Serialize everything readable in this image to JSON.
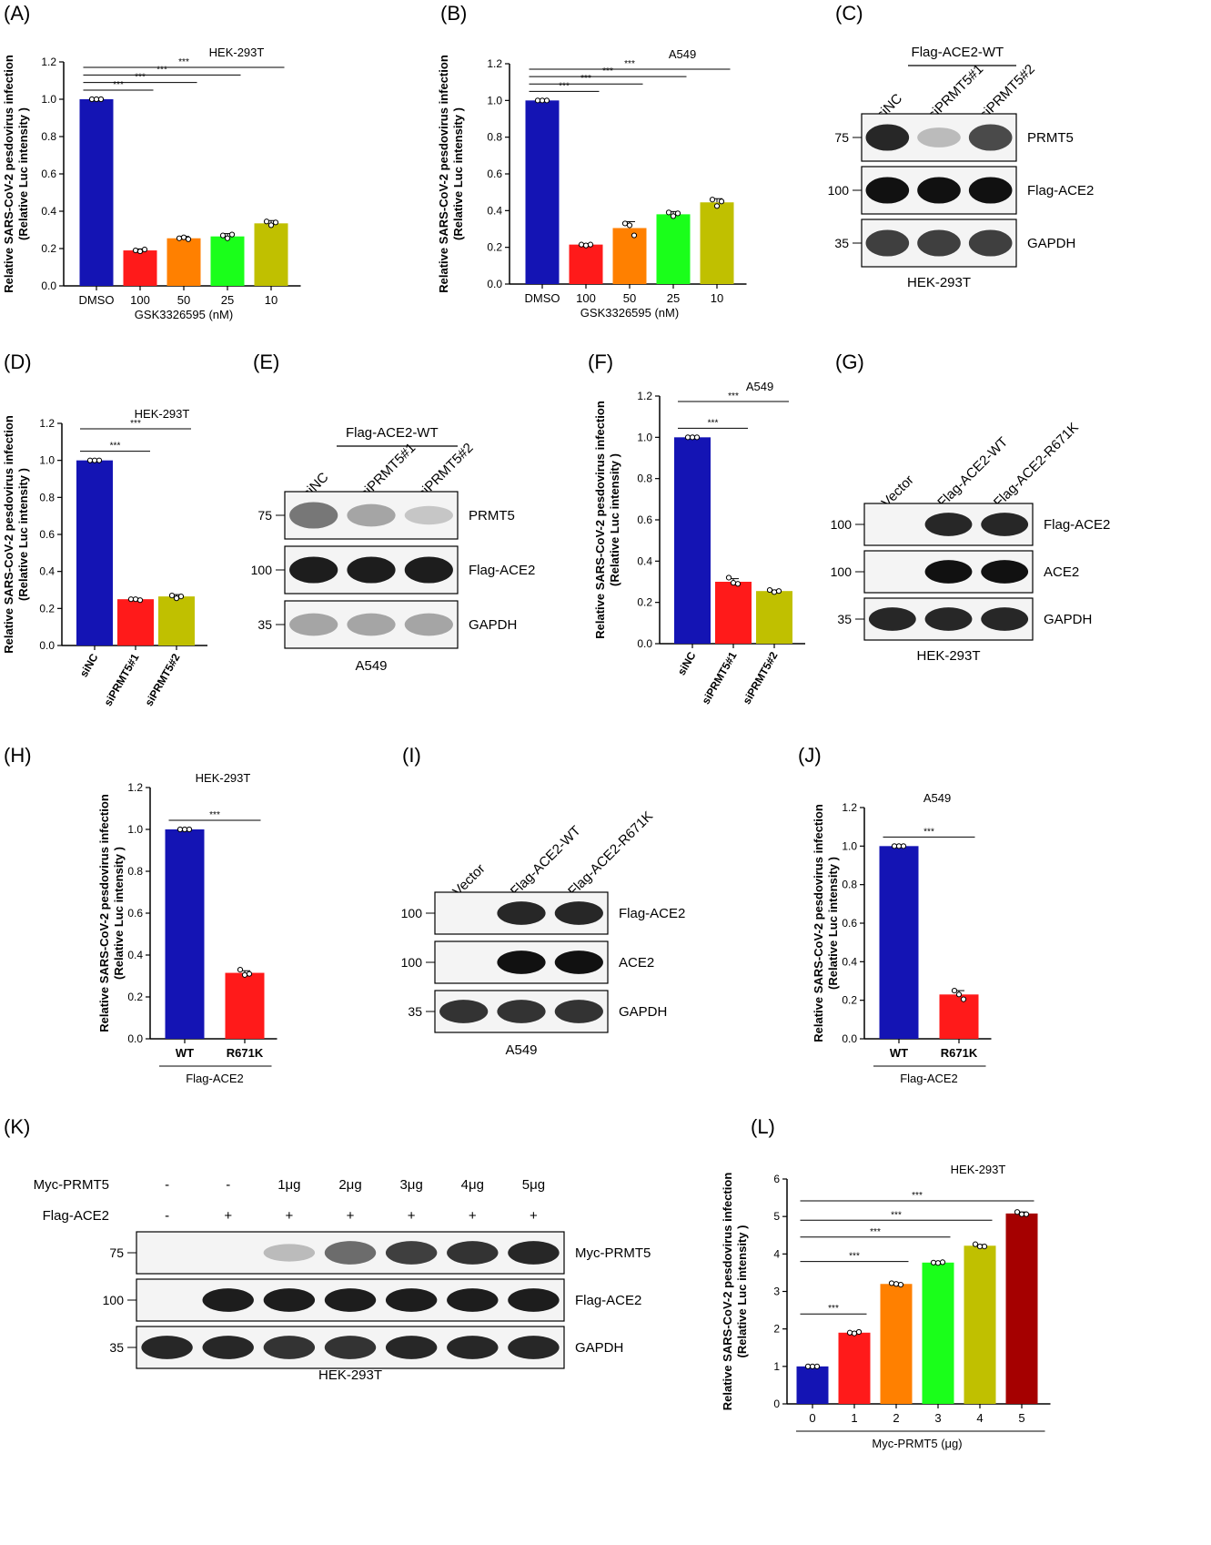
{
  "panel_letters": [
    "(A)",
    "(B)",
    "(C)",
    "(D)",
    "(E)",
    "(F)",
    "(G)",
    "(H)",
    "(I)",
    "(J)",
    "(K)",
    "(L)"
  ],
  "y_axis_title": [
    "Relative SARS-CoV-2 pesdovirus infection",
    "(Relative Luc intensity )"
  ],
  "significance": "***",
  "chart_data": [
    {
      "id": "A",
      "type": "bar",
      "title": "HEK-293T",
      "categories": [
        "DMSO",
        "100",
        "50",
        "25",
        "10"
      ],
      "values": [
        1.0,
        0.19,
        0.255,
        0.265,
        0.335
      ],
      "errors": [
        0.0,
        0.008,
        0.01,
        0.015,
        0.015
      ],
      "points": [
        [
          1.0,
          1.0,
          1.0
        ],
        [
          0.19,
          0.185,
          0.195
        ],
        [
          0.255,
          0.26,
          0.25
        ],
        [
          0.27,
          0.255,
          0.275
        ],
        [
          0.345,
          0.325,
          0.34
        ]
      ],
      "colors": [
        "#1414b4",
        "#ff1a1a",
        "#ff8000",
        "#1aff1a",
        "#c0c000"
      ],
      "xlabel": "GSK3326595 (nM)",
      "ylim": [
        0,
        1.2
      ],
      "yticks": [
        "0.0",
        "0.2",
        "0.4",
        "0.6",
        "0.8",
        "1.0",
        "1.2"
      ],
      "sig": [
        [
          0,
          1
        ],
        [
          0,
          2
        ],
        [
          0,
          3
        ],
        [
          0,
          4
        ]
      ],
      "rotated": false
    },
    {
      "id": "B",
      "type": "bar",
      "title": "A549",
      "categories": [
        "DMSO",
        "100",
        "50",
        "25",
        "10"
      ],
      "values": [
        1.0,
        0.215,
        0.305,
        0.38,
        0.445
      ],
      "errors": [
        0.0,
        0.005,
        0.035,
        0.015,
        0.02
      ],
      "points": [
        [
          1.0,
          1.0,
          1.0
        ],
        [
          0.215,
          0.21,
          0.215
        ],
        [
          0.33,
          0.32,
          0.265
        ],
        [
          0.39,
          0.37,
          0.385
        ],
        [
          0.46,
          0.425,
          0.45
        ]
      ],
      "colors": [
        "#1414b4",
        "#ff1a1a",
        "#ff8000",
        "#1aff1a",
        "#c0c000"
      ],
      "xlabel": "GSK3326595 (nM)",
      "ylim": [
        0,
        1.2
      ],
      "yticks": [
        "0.0",
        "0.2",
        "0.4",
        "0.6",
        "0.8",
        "1.0",
        "1.2"
      ],
      "sig": [
        [
          0,
          1
        ],
        [
          0,
          2
        ],
        [
          0,
          3
        ],
        [
          0,
          4
        ]
      ],
      "rotated": false
    },
    {
      "id": "D",
      "type": "bar",
      "title": "HEK-293T",
      "categories": [
        "siNC",
        "siPRMT5#1",
        "siPRMT5#2"
      ],
      "values": [
        1.0,
        0.25,
        0.265
      ],
      "errors": [
        0.0,
        0.005,
        0.01
      ],
      "points": [
        [
          1.0,
          1.0,
          1.0
        ],
        [
          0.25,
          0.25,
          0.245
        ],
        [
          0.27,
          0.255,
          0.265
        ]
      ],
      "colors": [
        "#1414b4",
        "#ff1a1a",
        "#c0c000"
      ],
      "xlabel": "",
      "ylim": [
        0,
        1.2
      ],
      "yticks": [
        "0.0",
        "0.2",
        "0.4",
        "0.6",
        "0.8",
        "1.0",
        "1.2"
      ],
      "sig": [
        [
          0,
          1
        ],
        [
          0,
          2
        ]
      ],
      "rotated": true
    },
    {
      "id": "F",
      "type": "bar",
      "title": "A549",
      "categories": [
        "siNC",
        "siPRMT5#1",
        "siPRMT5#2"
      ],
      "values": [
        1.0,
        0.3,
        0.255
      ],
      "errors": [
        0.0,
        0.015,
        0.005
      ],
      "points": [
        [
          1.0,
          1.0,
          1.0
        ],
        [
          0.32,
          0.295,
          0.29
        ],
        [
          0.26,
          0.25,
          0.255
        ]
      ],
      "colors": [
        "#1414b4",
        "#ff1a1a",
        "#c0c000"
      ],
      "xlabel": "",
      "ylim": [
        0,
        1.2
      ],
      "yticks": [
        "0.0",
        "0.2",
        "0.4",
        "0.6",
        "0.8",
        "1.0",
        "1.2"
      ],
      "sig": [
        [
          0,
          1
        ],
        [
          0,
          2
        ]
      ],
      "rotated": true
    },
    {
      "id": "H",
      "type": "bar",
      "title": "HEK-293T",
      "categories": [
        "WT",
        "R671K"
      ],
      "values": [
        1.0,
        0.315
      ],
      "errors": [
        0.0,
        0.01
      ],
      "points": [
        [
          1.0,
          1.0,
          1.0
        ],
        [
          0.33,
          0.305,
          0.31
        ]
      ],
      "colors": [
        "#1414b4",
        "#ff1a1a"
      ],
      "xlabel": "Flag-ACE2",
      "ylim": [
        0,
        1.2
      ],
      "yticks": [
        "0.0",
        "0.2",
        "0.4",
        "0.6",
        "0.8",
        "1.0",
        "1.2"
      ],
      "sig": [
        [
          0,
          1
        ]
      ],
      "rotated": false,
      "boldcats": true
    },
    {
      "id": "J",
      "type": "bar",
      "title": "A549",
      "categories": [
        "WT",
        "R671K"
      ],
      "values": [
        1.0,
        0.23
      ],
      "errors": [
        0.0,
        0.02
      ],
      "points": [
        [
          1.0,
          1.0,
          1.0
        ],
        [
          0.25,
          0.23,
          0.205
        ]
      ],
      "colors": [
        "#1414b4",
        "#ff1a1a"
      ],
      "xlabel": "Flag-ACE2",
      "ylim": [
        0,
        1.2
      ],
      "yticks": [
        "0.0",
        "0.2",
        "0.4",
        "0.6",
        "0.8",
        "1.0",
        "1.2"
      ],
      "sig": [
        [
          0,
          1
        ]
      ],
      "rotated": false,
      "boldcats": true
    },
    {
      "id": "L",
      "type": "bar",
      "title": "HEK-293T",
      "categories": [
        "0",
        "1",
        "2",
        "3",
        "4",
        "5"
      ],
      "values": [
        1.0,
        1.9,
        3.2,
        3.77,
        4.22,
        5.08
      ],
      "errors": [
        0.0,
        0.02,
        0.03,
        0.02,
        0.03,
        0.04
      ],
      "points": [
        [
          1.0,
          1.0,
          1.0
        ],
        [
          1.9,
          1.88,
          1.92
        ],
        [
          3.22,
          3.2,
          3.18
        ],
        [
          3.77,
          3.76,
          3.78
        ],
        [
          4.26,
          4.2,
          4.2
        ],
        [
          5.12,
          5.06,
          5.06
        ]
      ],
      "colors": [
        "#1414b4",
        "#ff1a1a",
        "#ff8000",
        "#1aff1a",
        "#c0c000",
        "#a50000"
      ],
      "xlabel": "Myc-PRMT5 (μg)",
      "ylim": [
        0,
        6
      ],
      "yticks": [
        "0",
        "1",
        "2",
        "3",
        "4",
        "5",
        "6"
      ],
      "sig": [
        [
          0,
          1
        ],
        [
          0,
          2
        ],
        [
          0,
          3
        ],
        [
          0,
          4
        ],
        [
          0,
          5
        ]
      ],
      "rotated": false
    }
  ],
  "blots": {
    "C": {
      "header": "Flag-ACE2-WT",
      "lanes": [
        "siNC",
        "siPRMT5#1",
        "siPRMT5#2"
      ],
      "mw": [
        "75",
        "100",
        "35"
      ],
      "bands": [
        "PRMT5",
        "Flag-ACE2",
        "GAPDH"
      ],
      "cell": "HEK-293T"
    },
    "E": {
      "header": "Flag-ACE2-WT",
      "lanes": [
        "siNC",
        "siPRMT5#1",
        "siPRMT5#2"
      ],
      "mw": [
        "75",
        "100",
        "35"
      ],
      "bands": [
        "PRMT5",
        "Flag-ACE2",
        "GAPDH"
      ],
      "cell": "A549"
    },
    "G": {
      "lanes": [
        "Vector",
        "Flag-ACE2-WT",
        "Flag-ACE2-R671K"
      ],
      "mw": [
        "100",
        "100",
        "35"
      ],
      "bands": [
        "Flag-ACE2",
        "ACE2",
        "GAPDH"
      ],
      "cell": "HEK-293T"
    },
    "I": {
      "lanes": [
        "Vector",
        "Flag-ACE2-WT",
        "Flag-ACE2-R671K"
      ],
      "mw": [
        "100",
        "100",
        "35"
      ],
      "bands": [
        "Flag-ACE2",
        "ACE2",
        "GAPDH"
      ],
      "cell": "A549"
    },
    "K": {
      "row1_label": "Myc-PRMT5",
      "row1": [
        "-",
        "-",
        "1μg",
        "2μg",
        "3μg",
        "4μg",
        "5μg"
      ],
      "row2_label": "Flag-ACE2",
      "row2": [
        "-",
        "+",
        "+",
        "+",
        "+",
        "+",
        "+"
      ],
      "mw": [
        "75",
        "100",
        "35"
      ],
      "bands": [
        "Myc-PRMT5",
        "Flag-ACE2",
        "GAPDH"
      ],
      "cell": "HEK-293T"
    }
  }
}
